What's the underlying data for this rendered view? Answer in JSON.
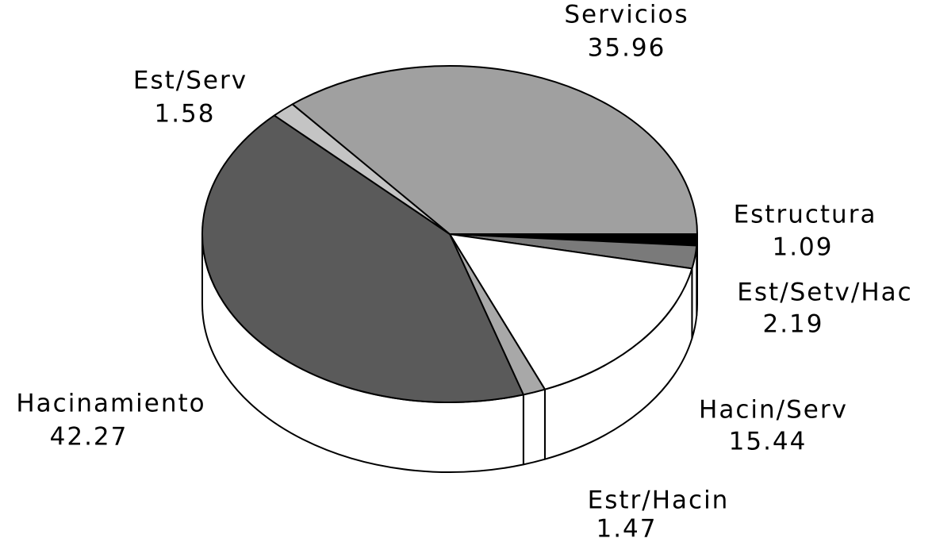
{
  "chart_data": {
    "type": "pie",
    "categories": [
      "Estructura",
      "Est/Setv/Hac",
      "Hacin/Serv",
      "Estr/Hacin",
      "Hacinamiento",
      "Est/Serv",
      "Servicios"
    ],
    "values": [
      1.09,
      2.19,
      15.44,
      1.47,
      42.27,
      1.58,
      35.96
    ],
    "colors": [
      "#000000",
      "#7a7a7a",
      "#ffffff",
      "#a8a8a8",
      "#5a5a5a",
      "#c4c4c4",
      "#a0a0a0"
    ]
  }
}
